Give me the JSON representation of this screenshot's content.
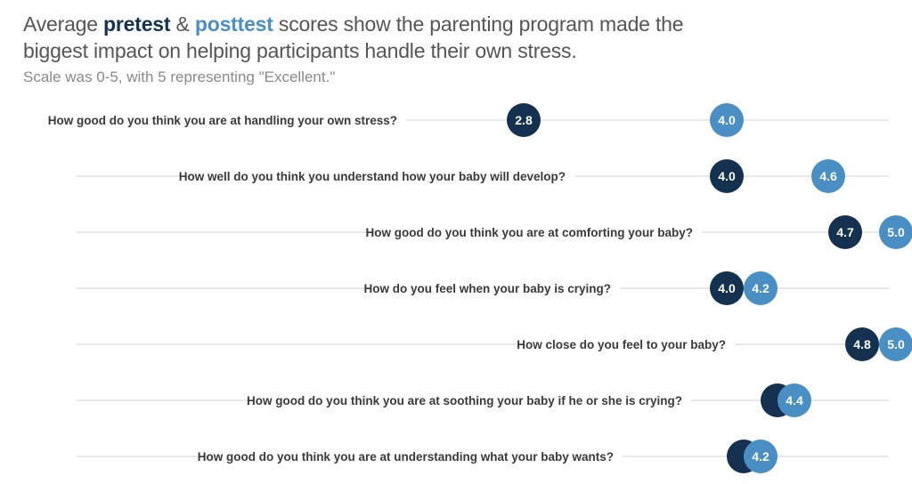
{
  "header": {
    "title_pre": "Average ",
    "title_pretest": "pretest",
    "title_amp": " & ",
    "title_posttest": "posttest",
    "title_rest": " scores show the parenting program made the biggest impact on helping participants handle their own stress.",
    "subtitle": "Scale was 0-5, with 5 representing \"Excellent.\""
  },
  "colors": {
    "pretest": "#14314f",
    "posttest": "#4a8fc4",
    "line": "#d9d9d9"
  },
  "chart_data": {
    "type": "dot",
    "title": "Average pretest & posttest scores show the parenting program made the biggest impact on helping participants handle their own stress.",
    "subtitle": "Scale was 0-5, with 5 representing \"Excellent.\"",
    "xlim": [
      0,
      5
    ],
    "categories": [
      "How good do you think you are at handling your own stress?",
      "How well do you think you understand how your baby will develop?",
      "How good do you think you are at comforting your baby?",
      "How do you feel when your baby is crying?",
      "How close do you feel to your baby?",
      "How good do you think you are at soothing your baby if he or she is crying?",
      "How good do you think you are at understanding what your baby wants?"
    ],
    "series": [
      {
        "name": "pretest",
        "values": [
          2.8,
          4.0,
          4.7,
          4.0,
          4.8,
          4.3,
          4.1
        ],
        "labels": [
          "2.8",
          "4.0",
          "4.7",
          "4.0",
          "4.8",
          "",
          ""
        ]
      },
      {
        "name": "posttest",
        "values": [
          4.0,
          4.6,
          5.0,
          4.2,
          5.0,
          4.4,
          4.2
        ],
        "labels": [
          "4.0",
          "4.6",
          "5.0",
          "4.2",
          "5.0",
          "4.4",
          "4.2"
        ]
      }
    ]
  }
}
